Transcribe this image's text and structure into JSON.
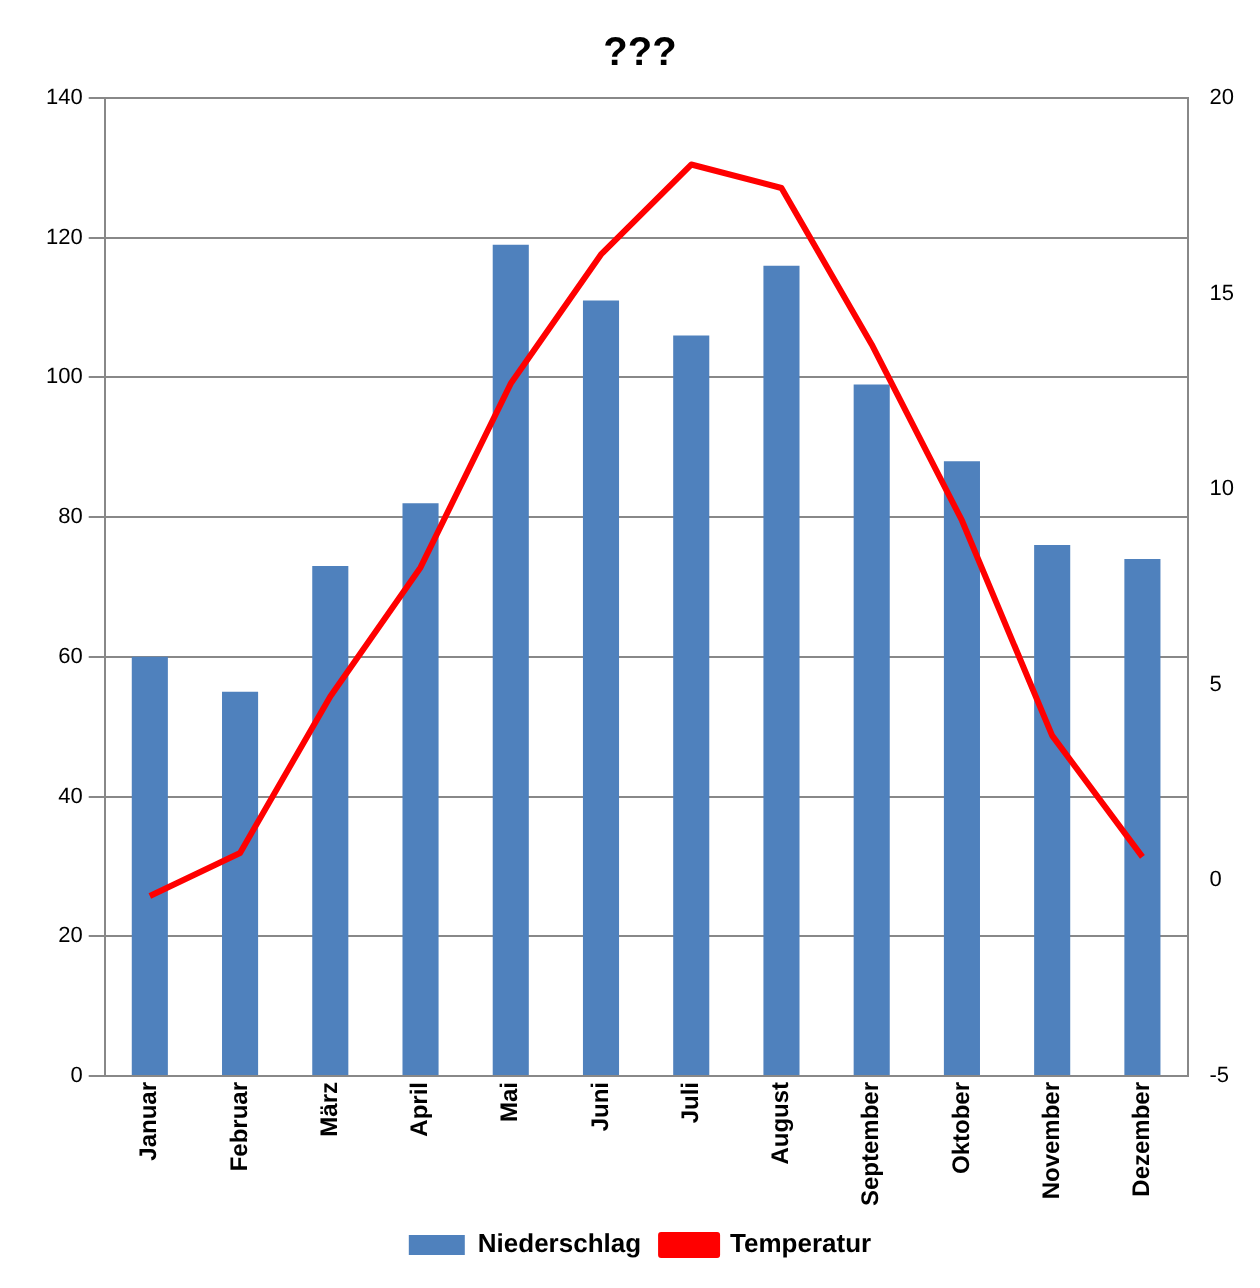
{
  "chart_data": {
    "type": "bar",
    "title": "???",
    "categories": [
      "Januar",
      "Februar",
      "März",
      "April",
      "Mai",
      "Juni",
      "Juli",
      "August",
      "September",
      "Oktober",
      "November",
      "Dezember"
    ],
    "series": [
      {
        "name": "Niederschlag",
        "color": "#4f81bd",
        "values": [
          60,
          55,
          73,
          82,
          119,
          111,
          106,
          116,
          99,
          88,
          76,
          74
        ]
      },
      {
        "name": "Temperatur",
        "type": "line",
        "axis": "y2",
        "color": "#ff0000",
        "values": [
          -0.4,
          0.7,
          4.7,
          8.0,
          12.7,
          16.0,
          18.3,
          17.7,
          13.7,
          9.2,
          3.7,
          0.6
        ]
      }
    ],
    "ylim": [
      0,
      140
    ],
    "yticks": [
      0,
      20,
      40,
      60,
      80,
      100,
      120,
      140
    ],
    "y2lim": [
      -5,
      20
    ],
    "y2ticks": [
      -5,
      0,
      5,
      10,
      15,
      20
    ],
    "grid": "y",
    "legend": "bottom",
    "marker": "none"
  }
}
